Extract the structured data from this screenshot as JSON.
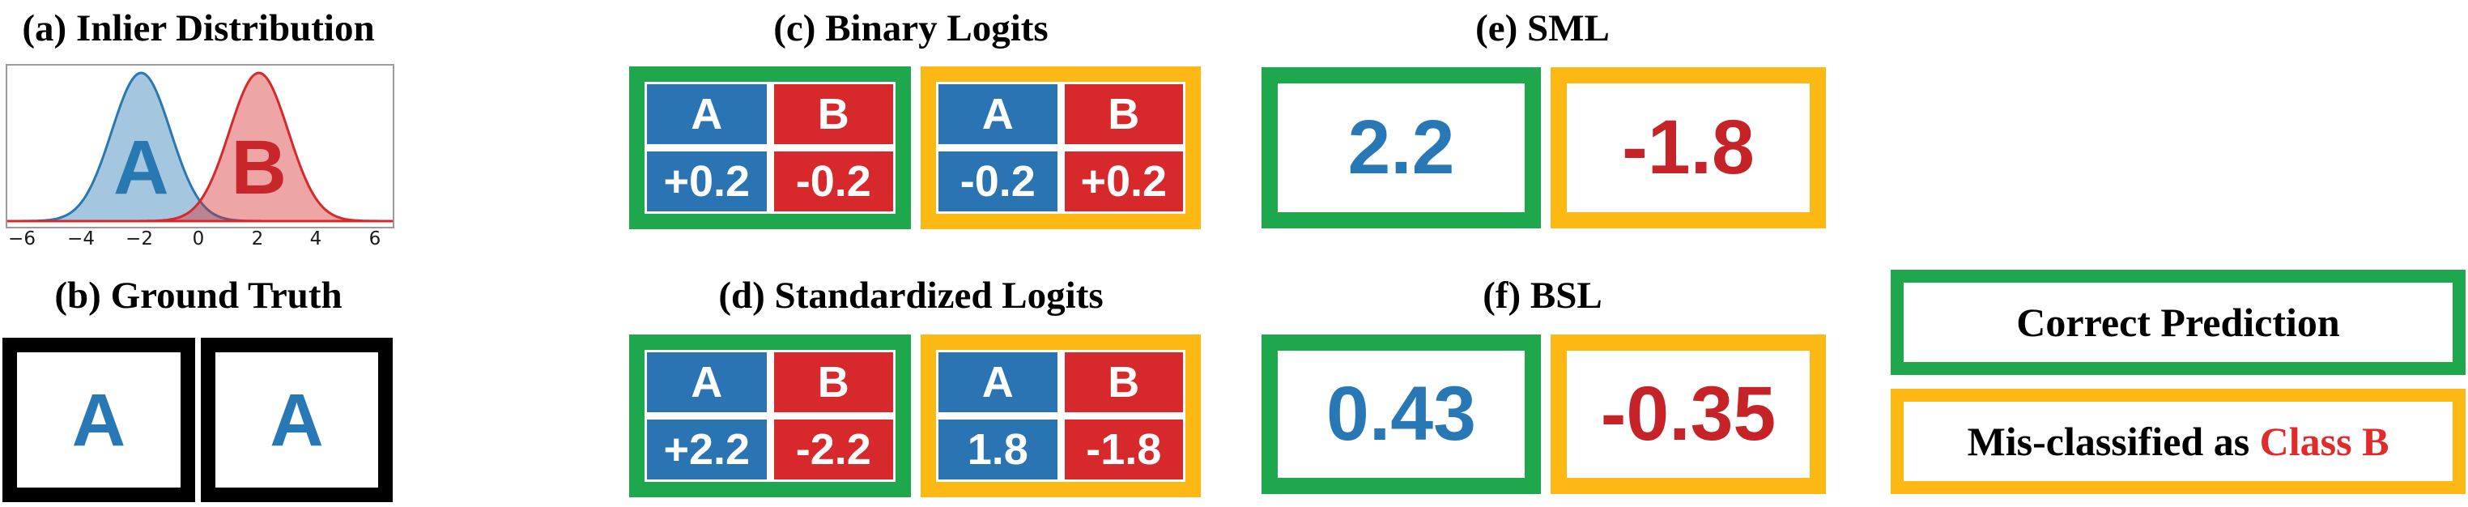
{
  "colors": {
    "frame_green": "#1fa74d",
    "frame_yellow": "#fdb813",
    "cell_blue": "#2b74b4",
    "cell_red": "#d7282b",
    "text_blue": "#2878b5",
    "text_red": "#c52327",
    "legend_red": "#e02b2b",
    "box_black": "#000000"
  },
  "panels": {
    "a": {
      "title": "(a) Inlier Distribution"
    },
    "b": {
      "title": "(b) Ground Truth",
      "boxes": [
        {
          "label": "A"
        },
        {
          "label": "A"
        }
      ]
    },
    "c": {
      "title": "(c) Binary Logits",
      "tables": [
        {
          "frame": "green",
          "header": [
            "A",
            "B"
          ],
          "values": [
            "+0.2",
            "-0.2"
          ]
        },
        {
          "frame": "yellow",
          "header": [
            "A",
            "B"
          ],
          "values": [
            "-0.2",
            "+0.2"
          ]
        }
      ]
    },
    "d": {
      "title": "(d) Standardized Logits",
      "tables": [
        {
          "frame": "green",
          "header": [
            "A",
            "B"
          ],
          "values": [
            "+2.2",
            "-2.2"
          ]
        },
        {
          "frame": "yellow",
          "header": [
            "A",
            "B"
          ],
          "values": [
            "1.8",
            "-1.8"
          ]
        }
      ]
    },
    "e": {
      "title": "(e) SML",
      "boxes": [
        {
          "frame": "green",
          "value": "2.2",
          "value_color": "blue"
        },
        {
          "frame": "yellow",
          "value": "-1.8",
          "value_color": "red"
        }
      ]
    },
    "f": {
      "title": "(f) BSL",
      "boxes": [
        {
          "frame": "green",
          "value": "0.43",
          "value_color": "blue"
        },
        {
          "frame": "yellow",
          "value": "-0.35",
          "value_color": "red"
        }
      ]
    }
  },
  "legend": {
    "correct": "Correct Prediction",
    "mis_prefix": "Mis-classified as ",
    "mis_highlight": "Class B"
  },
  "chart_data": {
    "type": "area",
    "title": "(a) Inlier Distribution",
    "xlabel": "",
    "ylabel": "",
    "x_range": [
      -6.55,
      6.55
    ],
    "x_tick_values": [
      -6,
      -4,
      -2,
      0,
      2,
      4,
      6
    ],
    "x_tick_labels": [
      "−6",
      "−4",
      "−2",
      "0",
      "2",
      "4",
      "6"
    ],
    "grid": false,
    "legend_position": "labels-inside-plot",
    "series": [
      {
        "name": "A",
        "distribution": "gaussian",
        "mean": -2,
        "sigma": 1,
        "line_color": "#2878b2",
        "fill_color": "#2878b2",
        "fill_opacity": 0.42,
        "label_color": "#2878b2"
      },
      {
        "name": "B",
        "distribution": "gaussian",
        "mean": 2,
        "sigma": 1,
        "line_color": "#d7282b",
        "fill_color": "#d7282b",
        "fill_opacity": 0.42,
        "label_color": "#c9262b"
      }
    ]
  }
}
